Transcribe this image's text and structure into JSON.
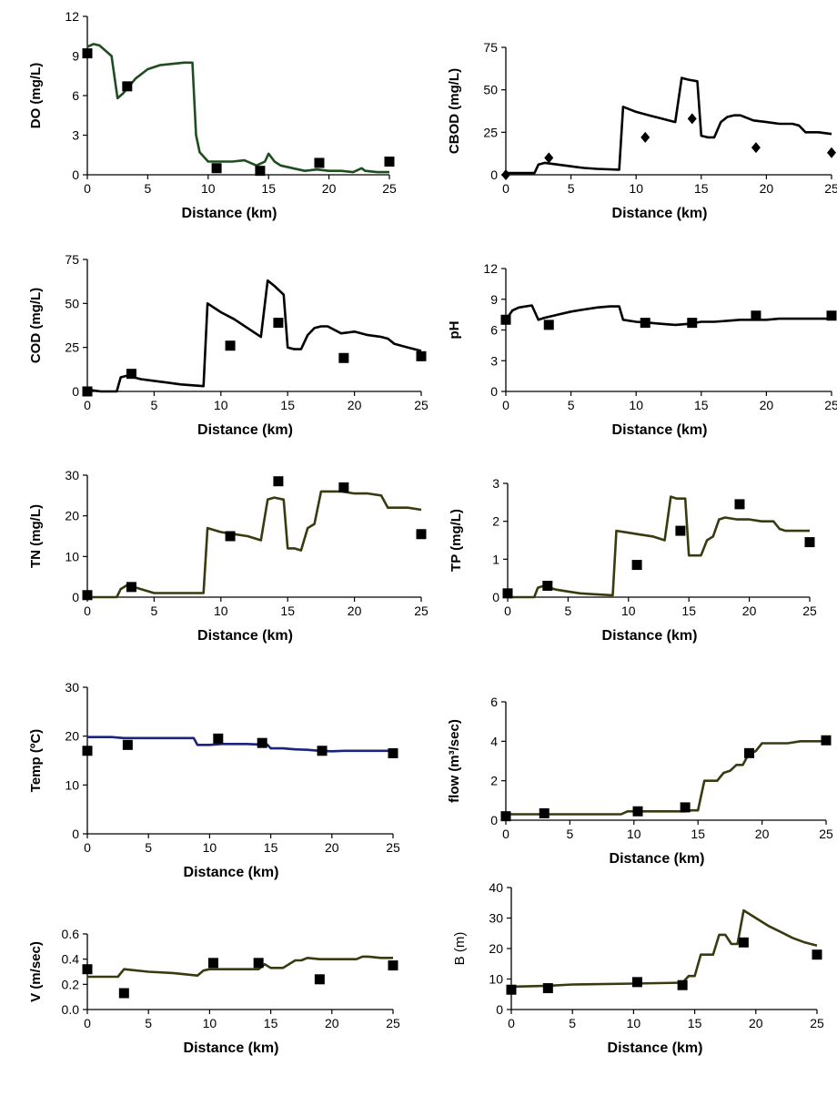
{
  "chart_data": [
    {
      "type": "line",
      "title": "",
      "xlabel": "Distance (km)",
      "ylabel": "DO (mg/L)",
      "ylabel_bold": true,
      "xlim": [
        0,
        25
      ],
      "ylim": [
        0,
        12
      ],
      "xticks": [
        0,
        5,
        10,
        15,
        20,
        25
      ],
      "yticks": [
        0,
        3,
        6,
        9,
        12
      ],
      "line_color": "#1f4d1f",
      "marker": "square",
      "series": [
        {
          "kind": "line",
          "x": [
            0,
            0.5,
            1,
            2,
            2.5,
            3,
            4,
            5,
            6,
            7,
            8,
            8.7,
            9,
            9.3,
            10,
            11,
            12,
            13,
            14,
            14.7,
            15,
            15.5,
            16,
            17,
            18,
            19,
            20,
            21,
            22,
            22.7,
            23,
            24,
            25
          ],
          "y": [
            9.7,
            9.9,
            9.8,
            9.0,
            5.8,
            6.2,
            7.3,
            8.0,
            8.3,
            8.4,
            8.5,
            8.5,
            3.0,
            1.7,
            1.0,
            1.0,
            1.0,
            1.1,
            0.7,
            1.0,
            1.6,
            1.0,
            0.7,
            0.5,
            0.3,
            0.4,
            0.3,
            0.3,
            0.2,
            0.5,
            0.3,
            0.2,
            0.2
          ]
        },
        {
          "kind": "markers",
          "x": [
            0,
            3.3,
            10.7,
            14.3,
            19.2,
            25
          ],
          "y": [
            9.2,
            6.7,
            0.5,
            0.3,
            0.9,
            1.0
          ]
        }
      ]
    },
    {
      "type": "line",
      "title": "",
      "xlabel": "Distance (km)",
      "ylabel": "CBOD (mg/L)",
      "ylabel_bold": true,
      "xlim": [
        0,
        25
      ],
      "ylim": [
        0,
        75
      ],
      "xticks": [
        0,
        5,
        10,
        15,
        20,
        25
      ],
      "yticks": [
        0,
        25,
        50,
        75
      ],
      "line_color": "#000000",
      "marker": "diamond",
      "series": [
        {
          "kind": "line",
          "x": [
            0,
            2.2,
            2.5,
            3,
            4,
            5,
            6,
            7,
            8.7,
            9,
            10,
            11,
            12,
            13,
            13.5,
            14,
            14.7,
            15,
            15.5,
            16,
            16.5,
            17,
            17.5,
            18,
            19,
            20,
            21,
            22,
            22.5,
            23,
            24,
            25
          ],
          "y": [
            1,
            1,
            6,
            7,
            6,
            5,
            4,
            3.5,
            3,
            40,
            37,
            35,
            33,
            31,
            57,
            56,
            55,
            23,
            22,
            22,
            31,
            34,
            35,
            35,
            32,
            31,
            30,
            30,
            29,
            25,
            25,
            24
          ]
        },
        {
          "kind": "markers",
          "x": [
            0,
            3.3,
            10.7,
            14.3,
            19.2,
            25
          ],
          "y": [
            0,
            10,
            22,
            33,
            16,
            13
          ]
        }
      ]
    },
    {
      "type": "line",
      "title": "",
      "xlabel": "Distance (km)",
      "ylabel": "COD (mg/L)",
      "ylabel_bold": true,
      "xlim": [
        0,
        25
      ],
      "ylim": [
        0,
        75
      ],
      "xticks": [
        0,
        5,
        10,
        15,
        20,
        25
      ],
      "yticks": [
        0,
        25,
        50,
        75
      ],
      "line_color": "#000000",
      "marker": "square",
      "series": [
        {
          "kind": "line",
          "x": [
            0,
            1,
            2.2,
            2.5,
            3,
            4,
            5,
            6,
            7,
            8.7,
            9,
            10,
            11,
            12,
            13,
            13.5,
            14,
            14.7,
            15,
            15.5,
            16,
            16.5,
            17,
            17.5,
            18,
            19,
            20,
            21,
            22,
            22.5,
            23,
            24,
            25
          ],
          "y": [
            1,
            0,
            0,
            8,
            9,
            7,
            6,
            5,
            4,
            3,
            50,
            45,
            41,
            36,
            31,
            63,
            60,
            55,
            25,
            24,
            24,
            32,
            36,
            37,
            37,
            33,
            34,
            32,
            31,
            30,
            27,
            25,
            23
          ]
        },
        {
          "kind": "markers",
          "x": [
            0,
            3.3,
            10.7,
            14.3,
            19.2,
            25
          ],
          "y": [
            0,
            10,
            26,
            39,
            19,
            20
          ]
        }
      ]
    },
    {
      "type": "line",
      "title": "",
      "xlabel": "Distance (km)",
      "ylabel": "pH",
      "ylabel_bold": true,
      "xlim": [
        0,
        25
      ],
      "ylim": [
        0,
        12
      ],
      "xticks": [
        0,
        5,
        10,
        15,
        20,
        25
      ],
      "yticks": [
        0,
        3,
        6,
        9,
        12
      ],
      "line_color": "#000000",
      "marker": "square",
      "series": [
        {
          "kind": "line",
          "x": [
            0,
            0.5,
            1,
            2,
            2.5,
            3,
            4,
            5,
            6,
            7,
            8,
            8.7,
            9,
            10,
            11,
            12,
            13,
            14,
            15,
            16,
            17,
            18,
            19,
            20,
            21,
            22,
            23,
            24,
            25
          ],
          "y": [
            7,
            7.9,
            8.2,
            8.4,
            7.0,
            7.2,
            7.5,
            7.8,
            8.0,
            8.2,
            8.3,
            8.3,
            7.0,
            6.8,
            6.7,
            6.6,
            6.5,
            6.6,
            6.8,
            6.8,
            6.9,
            7.0,
            7.0,
            7.0,
            7.1,
            7.1,
            7.1,
            7.1,
            7.1
          ]
        },
        {
          "kind": "markers",
          "x": [
            0,
            3.3,
            10.7,
            14.3,
            19.2,
            25
          ],
          "y": [
            7.0,
            6.5,
            6.7,
            6.7,
            7.4,
            7.4
          ]
        }
      ]
    },
    {
      "type": "line",
      "title": "",
      "xlabel": "Distance (km)",
      "ylabel": "TN (mg/L)",
      "ylabel_bold": true,
      "xlim": [
        0,
        25
      ],
      "ylim": [
        0,
        30
      ],
      "xticks": [
        0,
        5,
        10,
        15,
        20,
        25
      ],
      "yticks": [
        0,
        10,
        20,
        30
      ],
      "line_color": "#3a3a10",
      "marker": "square",
      "series": [
        {
          "kind": "line",
          "x": [
            0,
            2.2,
            2.5,
            3,
            4,
            5,
            6,
            7,
            8.7,
            9,
            10,
            11,
            12,
            13,
            13.5,
            14,
            14.7,
            15,
            15.5,
            16,
            16.5,
            17,
            17.5,
            18,
            19,
            20,
            21,
            22,
            22.5,
            23,
            24,
            25
          ],
          "y": [
            0,
            0,
            2,
            3,
            2,
            1,
            1,
            1,
            1,
            17,
            16,
            15.5,
            15,
            14,
            24,
            24.5,
            24,
            12,
            12,
            11.5,
            17,
            18,
            26,
            26,
            26,
            25.5,
            25.5,
            25,
            22,
            22,
            22,
            21.5
          ]
        },
        {
          "kind": "markers",
          "x": [
            0,
            3.3,
            10.7,
            14.3,
            19.2,
            25
          ],
          "y": [
            0.5,
            2.5,
            15,
            28.5,
            27,
            15.5
          ]
        }
      ]
    },
    {
      "type": "line",
      "title": "",
      "xlabel": "Distance (km)",
      "ylabel": "TP (mg/L)",
      "ylabel_bold": true,
      "xlim": [
        0,
        25
      ],
      "ylim": [
        0,
        3
      ],
      "xticks": [
        0,
        5,
        10,
        15,
        20,
        25
      ],
      "yticks": [
        0,
        1,
        2,
        3
      ],
      "line_color": "#3a3a10",
      "marker": "square",
      "series": [
        {
          "kind": "line",
          "x": [
            0,
            2.2,
            2.5,
            3,
            4,
            5,
            6,
            7,
            8.7,
            9,
            10,
            11,
            12,
            13,
            13.5,
            14,
            14.7,
            15,
            15.5,
            16,
            16.5,
            17,
            17.5,
            18,
            19,
            20,
            21,
            22,
            22.5,
            23,
            24,
            25
          ],
          "y": [
            0,
            0,
            0.25,
            0.3,
            0.2,
            0.15,
            0.1,
            0.08,
            0.05,
            1.75,
            1.7,
            1.65,
            1.6,
            1.5,
            2.65,
            2.6,
            2.6,
            1.1,
            1.1,
            1.1,
            1.5,
            1.6,
            2.05,
            2.1,
            2.05,
            2.05,
            2.0,
            2.0,
            1.8,
            1.75,
            1.75,
            1.75
          ]
        },
        {
          "kind": "markers",
          "x": [
            0,
            3.3,
            10.7,
            14.3,
            19.2,
            25
          ],
          "y": [
            0.1,
            0.3,
            0.85,
            1.75,
            2.45,
            1.45
          ]
        }
      ]
    },
    {
      "type": "line",
      "title": "",
      "xlabel": "Distance (km)",
      "ylabel": "Temp (ºC)",
      "ylabel_bold": true,
      "xlim": [
        0,
        25
      ],
      "ylim": [
        0,
        30
      ],
      "xticks": [
        0,
        5,
        10,
        15,
        20,
        25
      ],
      "yticks": [
        0,
        10,
        20,
        30
      ],
      "line_color": "#1a237e",
      "marker": "square",
      "series": [
        {
          "kind": "line",
          "x": [
            0,
            2,
            3,
            5,
            7,
            8.7,
            9,
            10,
            11,
            12,
            13,
            14,
            14.7,
            15,
            16,
            17,
            18,
            19,
            20,
            21,
            22,
            23,
            24,
            25
          ],
          "y": [
            19.8,
            19.8,
            19.6,
            19.6,
            19.6,
            19.6,
            18.2,
            18.2,
            18.4,
            18.4,
            18.4,
            18.3,
            18.3,
            17.5,
            17.5,
            17.3,
            17.2,
            17.0,
            16.9,
            17.0,
            17.0,
            17.0,
            17.0,
            17.0
          ]
        },
        {
          "kind": "markers",
          "x": [
            0,
            3.3,
            10.7,
            14.3,
            19.2,
            25
          ],
          "y": [
            17.0,
            18.2,
            19.5,
            18.6,
            17.0,
            16.5
          ]
        }
      ]
    },
    {
      "type": "line",
      "title": "",
      "xlabel": "Distance (km)",
      "ylabel": "flow (m³/sec)",
      "ylabel_bold": true,
      "xlim": [
        0,
        25
      ],
      "ylim": [
        0,
        6
      ],
      "xticks": [
        0,
        5,
        10,
        15,
        20,
        25
      ],
      "yticks": [
        0,
        2,
        4,
        6
      ],
      "line_color": "#3a3a10",
      "marker": "square",
      "series": [
        {
          "kind": "line",
          "x": [
            0,
            9,
            9.5,
            14,
            14.5,
            15,
            15.5,
            16,
            16.5,
            17,
            17.5,
            18,
            18.5,
            19,
            19.5,
            20,
            21,
            22,
            23,
            24,
            25
          ],
          "y": [
            0.3,
            0.3,
            0.45,
            0.45,
            0.5,
            0.5,
            2.0,
            2.0,
            2.0,
            2.4,
            2.5,
            2.8,
            2.8,
            3.4,
            3.5,
            3.9,
            3.9,
            3.9,
            4.0,
            4.0,
            4.0
          ]
        },
        {
          "kind": "markers",
          "x": [
            0,
            3,
            10.3,
            14,
            19,
            25
          ],
          "y": [
            0.2,
            0.35,
            0.45,
            0.65,
            3.4,
            4.05
          ]
        }
      ]
    },
    {
      "type": "line",
      "title": "",
      "xlabel": "Distance (km)",
      "ylabel": "V (m/sec)",
      "ylabel_bold": true,
      "xlim": [
        0,
        25
      ],
      "ylim": [
        0,
        0.6
      ],
      "xticks": [
        0,
        5,
        10,
        15,
        20,
        25
      ],
      "yticks": [
        0,
        0.2,
        0.4,
        0.6
      ],
      "ytick_labels": [
        "0.0",
        "0.2",
        "0.4",
        "0.6"
      ],
      "line_color": "#3a3a10",
      "marker": "square",
      "series": [
        {
          "kind": "line",
          "x": [
            0,
            2.5,
            3,
            5,
            7,
            9,
            9.5,
            10,
            11,
            12,
            13,
            14,
            14.5,
            15,
            16,
            17,
            17.5,
            18,
            19,
            20,
            21,
            22,
            22.5,
            23,
            24,
            25
          ],
          "y": [
            0.26,
            0.26,
            0.32,
            0.3,
            0.29,
            0.27,
            0.31,
            0.32,
            0.32,
            0.32,
            0.32,
            0.32,
            0.36,
            0.33,
            0.33,
            0.39,
            0.39,
            0.41,
            0.4,
            0.4,
            0.4,
            0.4,
            0.42,
            0.42,
            0.41,
            0.41
          ]
        },
        {
          "kind": "markers",
          "x": [
            0,
            3,
            10.3,
            14,
            19,
            25
          ],
          "y": [
            0.32,
            0.13,
            0.37,
            0.37,
            0.24,
            0.35
          ]
        }
      ]
    },
    {
      "type": "line",
      "title": "",
      "xlabel": "Distance (km)",
      "ylabel": "B (m)",
      "ylabel_bold": false,
      "xlim": [
        0,
        25
      ],
      "ylim": [
        0,
        40
      ],
      "xticks": [
        0,
        5,
        10,
        15,
        20,
        25
      ],
      "yticks": [
        0,
        10,
        20,
        30,
        40
      ],
      "line_color": "#3a3a10",
      "marker": "square",
      "series": [
        {
          "kind": "line",
          "x": [
            0,
            3,
            5,
            10,
            14,
            14.5,
            15,
            15.5,
            16,
            16.5,
            17,
            17.5,
            18,
            18.5,
            19,
            20,
            21,
            22,
            23,
            24,
            25
          ],
          "y": [
            7.5,
            7.8,
            8.2,
            8.5,
            8.8,
            11,
            11,
            18,
            18,
            18,
            24.5,
            24.5,
            21.5,
            21.5,
            32.5,
            30,
            27.5,
            25.5,
            23.5,
            22,
            21
          ]
        },
        {
          "kind": "markers",
          "x": [
            0,
            3,
            10.3,
            14,
            19,
            25
          ],
          "y": [
            6.5,
            7,
            9,
            8,
            22,
            18
          ]
        }
      ]
    }
  ]
}
